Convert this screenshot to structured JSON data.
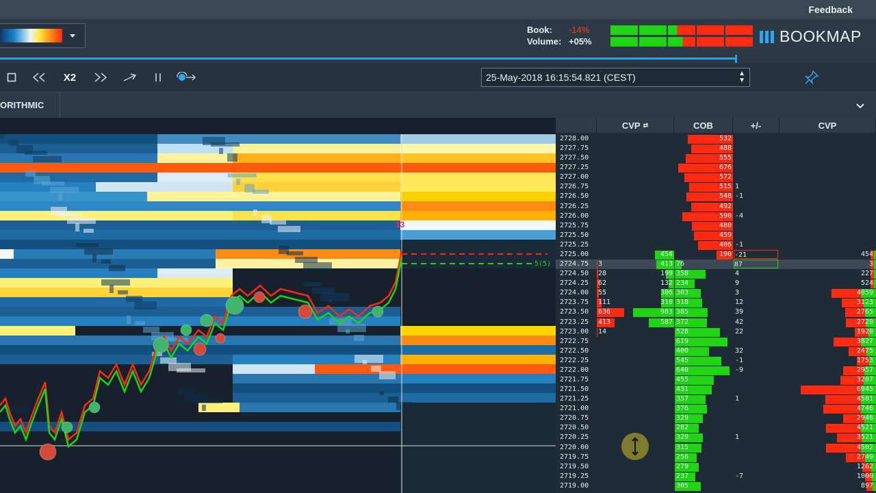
{
  "topbar": {
    "feedback": "Feedback"
  },
  "header": {
    "book_label": "Book:",
    "book_value": "-14%",
    "volume_label": "Volume:",
    "volume_value": "+05%",
    "brand": "BOOKMAP",
    "book_bar": [
      "green",
      "green",
      "split",
      "red",
      "red"
    ],
    "volume_bar": [
      "green",
      "green",
      "split",
      "red",
      "red"
    ],
    "colors": {
      "green": "#1ed415",
      "red": "#ff2a12",
      "accent": "#2ea7f2"
    }
  },
  "controls": {
    "speed": "X2",
    "datetime": "25-May-2018 16:15:54.821 (CEST)"
  },
  "tab": {
    "label": "ORITHMIC"
  },
  "chart": {
    "marker_label": "13",
    "order_label": "5(5)"
  },
  "ladder": {
    "headers": [
      "CVP",
      "COB",
      "+/-",
      "CVP"
    ],
    "rows": [
      {
        "price": "2728.00",
        "cob_ask": "532",
        "pm": "",
        "cvp2": ""
      },
      {
        "price": "2727.75",
        "cob_ask": "488",
        "pm": "",
        "cvp2": ""
      },
      {
        "price": "2727.50",
        "cob_ask": "555",
        "pm": "",
        "cvp2": ""
      },
      {
        "price": "2727.25",
        "cob_ask": "676",
        "pm": "",
        "cvp2": ""
      },
      {
        "price": "2727.00",
        "cob_ask": "572",
        "pm": "",
        "cvp2": ""
      },
      {
        "price": "2726.75",
        "cob_ask": "515",
        "pm": "1",
        "cvp2": ""
      },
      {
        "price": "2726.50",
        "cob_ask": "548",
        "pm": "-1",
        "cvp2": ""
      },
      {
        "price": "2726.25",
        "cob_ask": "492",
        "pm": "",
        "cvp2": ""
      },
      {
        "price": "2726.00",
        "cob_ask": "590",
        "pm": "-4",
        "cvp2": ""
      },
      {
        "price": "2725.75",
        "cob_ask": "480",
        "pm": "",
        "cvp2": ""
      },
      {
        "price": "2725.50",
        "cob_ask": "459",
        "pm": "",
        "cvp2": ""
      },
      {
        "price": "2725.25",
        "cob_ask": "406",
        "pm": "-1",
        "cvp2": ""
      },
      {
        "price": "2725.00",
        "cvp_buy": "454",
        "cob_ask": "190",
        "pm": "-21",
        "cvp2": "454"
      },
      {
        "price": "2724.75",
        "cvp_sell": "3",
        "cvp_buy": "413",
        "cob_bid": "76",
        "pm": "87",
        "cvp2": "3"
      },
      {
        "price": "2724.50",
        "cvp_sell": "28",
        "cvp_buy": "199",
        "cob_bid": "358",
        "pm": "4",
        "cvp2": "227"
      },
      {
        "price": "2724.25",
        "cvp_sell": "62",
        "cvp_buy": "132",
        "cob_bid": "234",
        "pm": "9",
        "cvp2": "524"
      },
      {
        "price": "2724.00",
        "cvp_sell": "55",
        "cvp_buy": "306",
        "cob_bid": "303",
        "pm": "3",
        "cvp2": "4059"
      },
      {
        "price": "2723.75",
        "cvp_sell": "111",
        "cvp_buy": "310",
        "cob_bid": "318",
        "pm": "12",
        "cvp2": "3123"
      },
      {
        "price": "2723.50",
        "cvp_sell": "636",
        "cvp_buy": "983",
        "cob_bid": "385",
        "pm": "39",
        "cvp2": "2765"
      },
      {
        "price": "2723.25",
        "cvp_sell": "413",
        "cvp_buy": "587",
        "cob_bid": "372",
        "pm": "42",
        "cvp2": "2729"
      },
      {
        "price": "2723.00",
        "cvp_sell": "14",
        "cob_bid": "528",
        "pm": "22",
        "cvp2": "1920"
      },
      {
        "price": "2722.75",
        "cob_bid": "619",
        "pm": "",
        "cvp2": "3827"
      },
      {
        "price": "2722.50",
        "cob_bid": "400",
        "pm": "32",
        "cvp2": "2475"
      },
      {
        "price": "2722.25",
        "cob_bid": "545",
        "pm": "-1",
        "cvp2": "1753"
      },
      {
        "price": "2722.00",
        "cob_bid": "640",
        "pm": "-9",
        "cvp2": "2957"
      },
      {
        "price": "2721.75",
        "cob_bid": "455",
        "pm": "",
        "cvp2": "3207"
      },
      {
        "price": "2721.50",
        "cob_bid": "431",
        "pm": "",
        "cvp2": "6945"
      },
      {
        "price": "2721.25",
        "cob_bid": "357",
        "pm": "1",
        "cvp2": "4581"
      },
      {
        "price": "2721.00",
        "cob_bid": "376",
        "pm": "",
        "cvp2": "4746"
      },
      {
        "price": "2720.75",
        "cob_bid": "329",
        "pm": "",
        "cvp2": "2946"
      },
      {
        "price": "2720.50",
        "cob_bid": "282",
        "pm": "",
        "cvp2": "4521"
      },
      {
        "price": "2720.25",
        "cob_bid": "329",
        "pm": "1",
        "cvp2": "3521"
      },
      {
        "price": "2720.00",
        "cob_bid": "315",
        "pm": "",
        "cvp2": "4502"
      },
      {
        "price": "2719.75",
        "cob_bid": "256",
        "pm": "",
        "cvp2": "2749"
      },
      {
        "price": "2719.50",
        "cob_bid": "279",
        "pm": "",
        "cvp2": "1262"
      },
      {
        "price": "2719.25",
        "cob_bid": "237",
        "pm": "-7",
        "cvp2": "1000"
      },
      {
        "price": "2719.00",
        "cob_bid": "305",
        "pm": "",
        "cvp2": "897"
      }
    ]
  }
}
